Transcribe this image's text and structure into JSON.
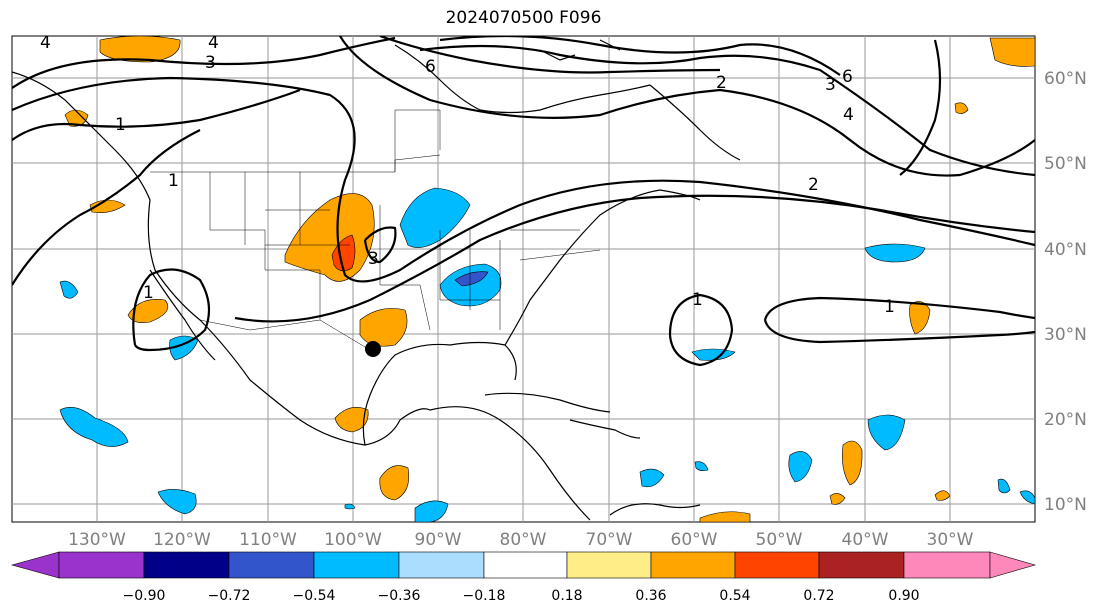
{
  "title": "2024070500 F096",
  "lon_ticks": [
    "130°W",
    "120°W",
    "110°W",
    "100°W",
    "90°W",
    "80°W",
    "70°W",
    "60°W",
    "50°W",
    "40°W",
    "30°W"
  ],
  "lat_ticks": [
    "60°N",
    "50°N",
    "40°N",
    "30°N",
    "20°N",
    "10°N"
  ],
  "colorbar": {
    "ticks": [
      "−0.90",
      "−0.72",
      "−0.54",
      "−0.36",
      "−0.18",
      "0.18",
      "0.36",
      "0.54",
      "0.72",
      "0.90"
    ],
    "colors": [
      "#9933cc",
      "#000088",
      "#3355cc",
      "#00bbff",
      "#aaddff",
      "#ffffff",
      "#ffee88",
      "#ffa500",
      "#ff4400",
      "#aa2222",
      "#ff88bb"
    ]
  },
  "contour_labels": [
    "4",
    "4",
    "3",
    "6",
    "1",
    "1",
    "1",
    "3",
    "2",
    "3",
    "6",
    "4",
    "2",
    "1",
    "1"
  ],
  "marker": "station-dot"
}
